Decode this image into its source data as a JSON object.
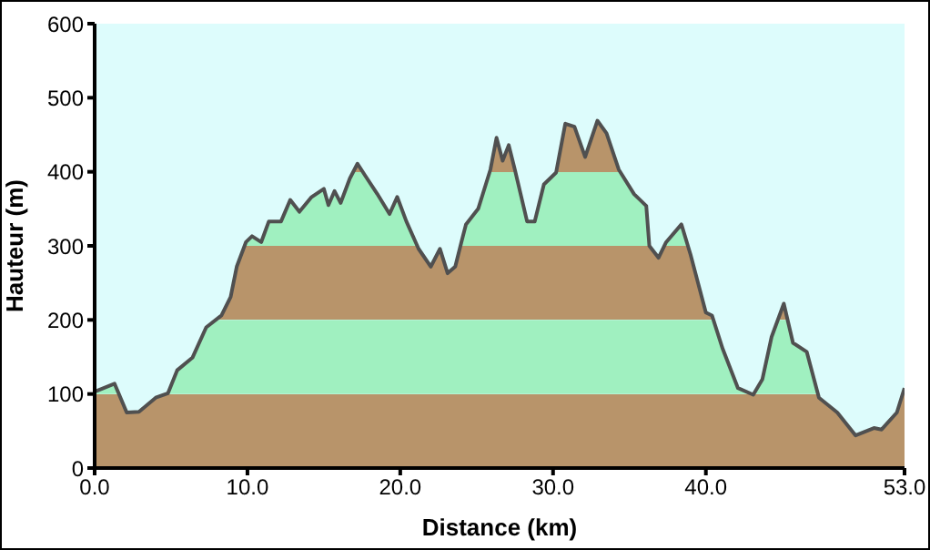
{
  "chart_data": {
    "type": "area",
    "xlabel": "Distance   (km)",
    "ylabel": "Hauteur (m)",
    "x": [
      0,
      1.3,
      2.1,
      2.9,
      4.0,
      4.8,
      5.4,
      6.4,
      7.3,
      8.3,
      8.9,
      9.3,
      9.9,
      10.3,
      10.9,
      11.4,
      12.2,
      12.8,
      13.4,
      14.2,
      15.0,
      15.3,
      15.7,
      16.1,
      16.7,
      17.2,
      17.7,
      18.5,
      19.3,
      19.8,
      20.4,
      21.2,
      22.0,
      22.6,
      23.1,
      23.6,
      24.0,
      24.3,
      25.1,
      25.9,
      26.3,
      26.7,
      27.1,
      27.5,
      28.3,
      28.8,
      29.4,
      30.2,
      30.8,
      31.4,
      32.1,
      32.9,
      33.5,
      34.3,
      35.3,
      36.1,
      36.3,
      36.9,
      37.4,
      38.4,
      39.0,
      40.0,
      40.4,
      41.1,
      42.1,
      43.1,
      43.7,
      44.3,
      45.1,
      45.7,
      46.6,
      47.4,
      48.6,
      49.8,
      51.0,
      51.5,
      52.5,
      53.0
    ],
    "series": [
      {
        "color": "#b8946a",
        "values": [
          103,
          114,
          75,
          76,
          95,
          101,
          132,
          149,
          190,
          206,
          231,
          272,
          305,
          313,
          305,
          333,
          333,
          362,
          346,
          366,
          377,
          355,
          374,
          358,
          391,
          411,
          395,
          370,
          343,
          366,
          333,
          296,
          272,
          296,
          263,
          272,
          305,
          329,
          350,
          403,
          446,
          415,
          436,
          403,
          333,
          333,
          383,
          399,
          465,
          461,
          420,
          469,
          452,
          403,
          370,
          354,
          300,
          284,
          305,
          329,
          288,
          210,
          206,
          161,
          108,
          99,
          120,
          177,
          222,
          169,
          157,
          95,
          75,
          44,
          54,
          52,
          75,
          108
        ]
      }
    ],
    "bands": [
      {
        "axis": "y",
        "from": 100,
        "to": 200,
        "color": "#a0f0c0"
      },
      {
        "axis": "y",
        "from": 300,
        "to": 400,
        "color": "#a0f0c0"
      }
    ],
    "xlim": [
      0,
      53
    ],
    "xticks": [
      {
        "value": 0,
        "label": "0.0"
      },
      {
        "value": 10,
        "label": "10.0"
      },
      {
        "value": 20,
        "label": "20.0"
      },
      {
        "value": 30,
        "label": "30.0"
      },
      {
        "value": 40,
        "label": "40.0"
      },
      {
        "value": 53,
        "label": "53.0"
      }
    ],
    "ylim": [
      0,
      600
    ],
    "yticks": [
      0,
      100,
      200,
      300,
      400,
      500,
      600
    ]
  }
}
